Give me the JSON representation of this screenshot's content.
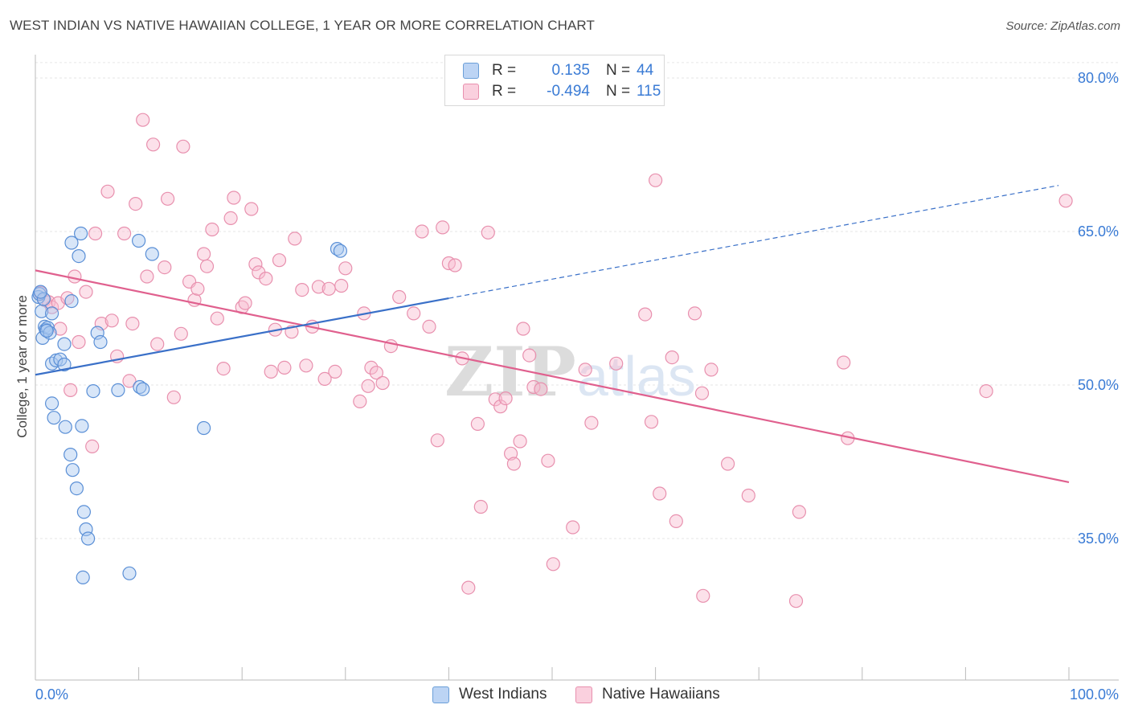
{
  "title": "WEST INDIAN VS NATIVE HAWAIIAN COLLEGE, 1 YEAR OR MORE CORRELATION CHART",
  "source": "Source: ZipAtlas.com",
  "watermark": {
    "zip": "ZIP",
    "atlas": "atlas"
  },
  "legend": {
    "rows": [
      {
        "r_label": "R =",
        "r_value": "0.135",
        "n_label": "N =",
        "n_value": "44",
        "color": "#a8c8f0",
        "border": "#6b9fd8"
      },
      {
        "r_label": "R =",
        "r_value": "-0.494",
        "n_label": "N =",
        "n_value": "115",
        "color": "#f8bcd0",
        "border": "#e890ae"
      }
    ]
  },
  "bottom_legend": {
    "west_indians": "West Indians",
    "native_hawaiians": "Native Hawaiians"
  },
  "colors": {
    "blue": "#3a70c8",
    "pink": "#e0608e",
    "blue_fill": "#a8c8f0",
    "pink_fill": "#f8bcd0",
    "axis_label": "#3a7bd5",
    "grid": "#e6e6e6"
  },
  "chart_data": {
    "type": "scatter",
    "title": "WEST INDIAN VS NATIVE HAWAIIAN COLLEGE, 1 YEAR OR MORE CORRELATION CHART",
    "xlabel": "",
    "ylabel": "College, 1 year or more",
    "xlim": [
      0,
      100
    ],
    "ylim": [
      20,
      83
    ],
    "x_tick_labels": [
      "0.0%",
      "100.0%"
    ],
    "y_ticks": [
      35,
      50,
      65,
      80
    ],
    "y_tick_labels": [
      "35.0%",
      "50.0%",
      "65.0%",
      "80.0%"
    ],
    "grid": true,
    "legend_position": "top-center",
    "series": [
      {
        "name": "West Indians",
        "color": "#a8c8f0",
        "R": 0.135,
        "N": 44,
        "trend": {
          "x_start": 0,
          "y_start": 51.0,
          "x_solid_end": 40,
          "x_end": 99,
          "y_end": 69.5
        },
        "points": [
          [
            0.3,
            58.6
          ],
          [
            0.4,
            58.9
          ],
          [
            0.6,
            57.2
          ],
          [
            0.8,
            58.4
          ],
          [
            0.9,
            55.7
          ],
          [
            1.0,
            55.4
          ],
          [
            0.7,
            54.6
          ],
          [
            1.2,
            55.6
          ],
          [
            1.4,
            55.1
          ],
          [
            1.6,
            57.0
          ],
          [
            3.5,
            58.2
          ],
          [
            1.6,
            52.1
          ],
          [
            2.0,
            52.4
          ],
          [
            2.4,
            52.5
          ],
          [
            2.8,
            52.0
          ],
          [
            2.8,
            54.0
          ],
          [
            3.5,
            63.9
          ],
          [
            4.2,
            62.6
          ],
          [
            4.4,
            64.8
          ],
          [
            5.6,
            49.4
          ],
          [
            6.0,
            55.1
          ],
          [
            6.3,
            54.2
          ],
          [
            8.0,
            49.5
          ],
          [
            10.0,
            64.1
          ],
          [
            10.1,
            49.8
          ],
          [
            10.4,
            49.6
          ],
          [
            11.3,
            62.8
          ],
          [
            1.6,
            48.2
          ],
          [
            1.8,
            46.8
          ],
          [
            2.9,
            45.9
          ],
          [
            4.5,
            46.0
          ],
          [
            3.4,
            43.2
          ],
          [
            3.6,
            41.7
          ],
          [
            4.0,
            39.9
          ],
          [
            4.7,
            37.6
          ],
          [
            4.9,
            35.9
          ],
          [
            5.1,
            35.0
          ],
          [
            4.6,
            31.2
          ],
          [
            9.1,
            31.6
          ],
          [
            16.3,
            45.8
          ],
          [
            29.2,
            63.3
          ],
          [
            29.5,
            63.1
          ],
          [
            0.5,
            59.1
          ],
          [
            1.1,
            55.3
          ]
        ]
      },
      {
        "name": "Native Hawaiians",
        "color": "#f8bcd0",
        "R": -0.494,
        "N": 115,
        "trend": {
          "x_start": 0,
          "y_start": 61.2,
          "x_end": 100,
          "y_end": 40.5
        },
        "points": [
          [
            0.5,
            59.0
          ],
          [
            0.9,
            58.3
          ],
          [
            1.3,
            58.1
          ],
          [
            1.6,
            57.6
          ],
          [
            2.2,
            58.0
          ],
          [
            2.4,
            55.5
          ],
          [
            3.1,
            58.5
          ],
          [
            3.4,
            49.5
          ],
          [
            3.8,
            60.6
          ],
          [
            4.2,
            54.2
          ],
          [
            4.9,
            59.1
          ],
          [
            5.5,
            44.0
          ],
          [
            5.8,
            64.8
          ],
          [
            6.4,
            56.0
          ],
          [
            7.0,
            68.9
          ],
          [
            7.4,
            56.3
          ],
          [
            7.9,
            52.8
          ],
          [
            8.6,
            64.8
          ],
          [
            9.1,
            50.4
          ],
          [
            9.4,
            56.0
          ],
          [
            9.7,
            67.7
          ],
          [
            10.4,
            75.9
          ],
          [
            10.8,
            60.6
          ],
          [
            11.4,
            73.5
          ],
          [
            11.8,
            54.0
          ],
          [
            12.5,
            61.5
          ],
          [
            12.8,
            68.2
          ],
          [
            13.4,
            48.8
          ],
          [
            14.1,
            55.0
          ],
          [
            14.3,
            73.3
          ],
          [
            14.9,
            60.1
          ],
          [
            15.4,
            58.3
          ],
          [
            15.7,
            59.4
          ],
          [
            16.3,
            62.8
          ],
          [
            16.6,
            61.6
          ],
          [
            17.1,
            65.2
          ],
          [
            17.6,
            56.5
          ],
          [
            18.2,
            51.6
          ],
          [
            18.9,
            66.3
          ],
          [
            19.2,
            68.3
          ],
          [
            20.0,
            57.6
          ],
          [
            20.3,
            58.0
          ],
          [
            20.9,
            67.2
          ],
          [
            21.3,
            61.8
          ],
          [
            21.6,
            61.0
          ],
          [
            22.3,
            60.4
          ],
          [
            22.8,
            51.3
          ],
          [
            23.2,
            55.4
          ],
          [
            23.6,
            62.2
          ],
          [
            24.1,
            51.7
          ],
          [
            24.8,
            55.2
          ],
          [
            25.1,
            64.3
          ],
          [
            25.8,
            59.3
          ],
          [
            26.2,
            51.9
          ],
          [
            26.8,
            55.7
          ],
          [
            27.4,
            59.6
          ],
          [
            28.0,
            50.6
          ],
          [
            28.4,
            59.4
          ],
          [
            29.0,
            51.3
          ],
          [
            29.6,
            59.7
          ],
          [
            30.0,
            61.4
          ],
          [
            31.4,
            48.4
          ],
          [
            31.8,
            57.0
          ],
          [
            32.2,
            49.9
          ],
          [
            32.5,
            51.7
          ],
          [
            33.0,
            51.2
          ],
          [
            33.6,
            50.2
          ],
          [
            34.4,
            53.8
          ],
          [
            35.2,
            58.6
          ],
          [
            36.6,
            57.0
          ],
          [
            37.4,
            65.0
          ],
          [
            38.1,
            55.7
          ],
          [
            38.9,
            44.6
          ],
          [
            39.4,
            65.4
          ],
          [
            40.0,
            61.9
          ],
          [
            40.6,
            61.7
          ],
          [
            41.3,
            52.6
          ],
          [
            41.9,
            30.2
          ],
          [
            42.8,
            46.2
          ],
          [
            43.1,
            38.1
          ],
          [
            43.8,
            64.9
          ],
          [
            44.5,
            48.6
          ],
          [
            45.0,
            47.9
          ],
          [
            45.5,
            48.7
          ],
          [
            46.0,
            43.3
          ],
          [
            46.3,
            42.3
          ],
          [
            46.9,
            44.5
          ],
          [
            47.2,
            55.5
          ],
          [
            47.8,
            52.9
          ],
          [
            48.2,
            49.8
          ],
          [
            48.9,
            49.6
          ],
          [
            49.6,
            42.6
          ],
          [
            50.1,
            32.5
          ],
          [
            52.0,
            36.1
          ],
          [
            53.2,
            51.5
          ],
          [
            53.8,
            46.3
          ],
          [
            56.2,
            52.1
          ],
          [
            59.0,
            56.9
          ],
          [
            59.6,
            46.4
          ],
          [
            60.0,
            70.0
          ],
          [
            60.4,
            39.4
          ],
          [
            61.6,
            52.7
          ],
          [
            62.0,
            36.7
          ],
          [
            63.8,
            57.0
          ],
          [
            64.5,
            49.2
          ],
          [
            64.6,
            29.4
          ],
          [
            65.4,
            51.5
          ],
          [
            67.0,
            42.3
          ],
          [
            69.0,
            39.2
          ],
          [
            73.6,
            28.9
          ],
          [
            73.9,
            37.6
          ],
          [
            78.2,
            52.2
          ],
          [
            78.6,
            44.8
          ],
          [
            92.0,
            49.4
          ],
          [
            99.7,
            68.0
          ]
        ]
      }
    ]
  }
}
